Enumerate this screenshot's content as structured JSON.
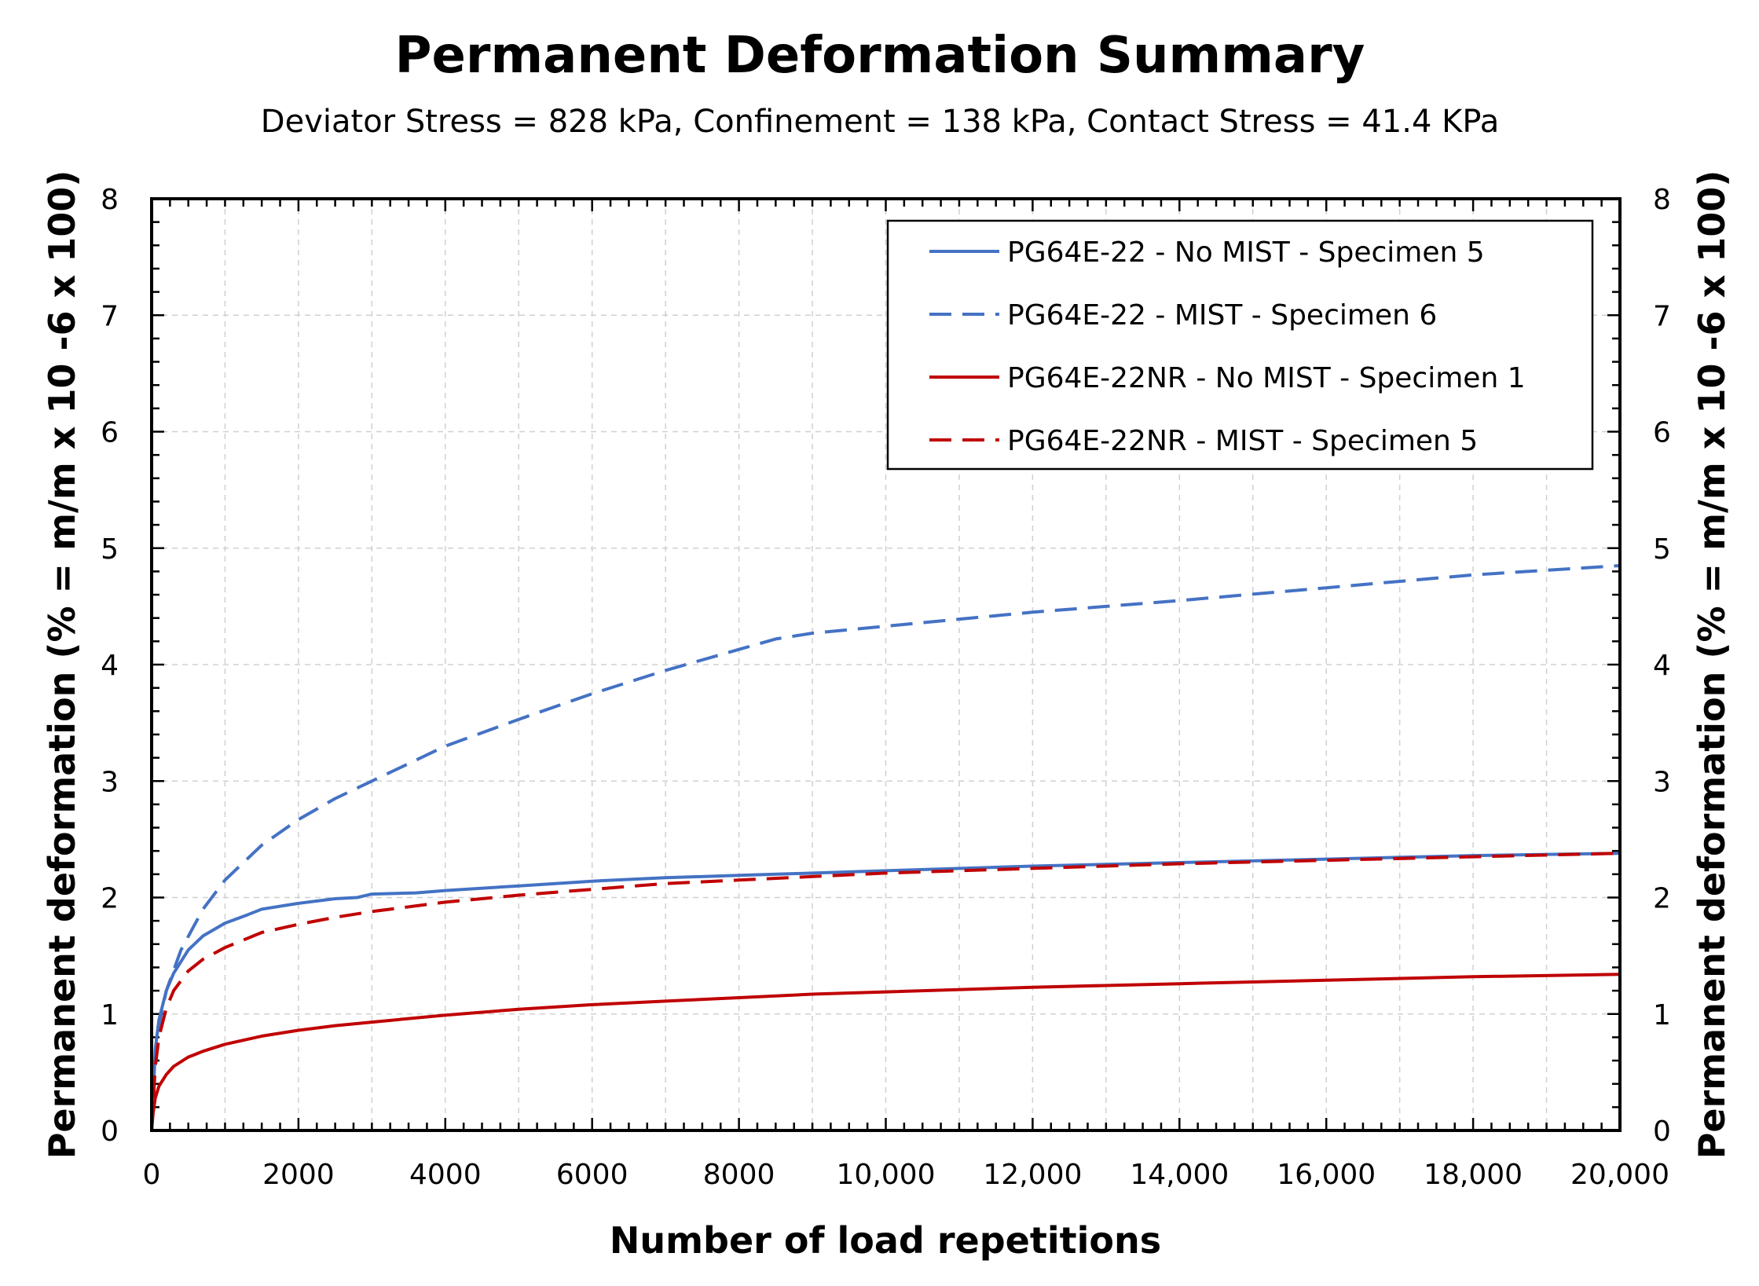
{
  "chart_data": {
    "type": "line",
    "title": "Permanent Deformation Summary",
    "subtitle": "Deviator Stress = 828 kPa, Confinement = 138 kPa, Contact Stress = 41.4 KPa",
    "xlabel": "Number of load repetitions",
    "ylabel": "Permanent deformation (% = m/m x 10 -6 x 100)",
    "ylabel_right": "Permanent deformation (% = m/m x 10 -6 x 100)",
    "xlim": [
      0,
      20000
    ],
    "ylim": [
      0,
      8
    ],
    "grid": true,
    "legend_position": "top-right",
    "x_ticks": [
      {
        "value": 0,
        "label": "0"
      },
      {
        "value": 2000,
        "label": "2000"
      },
      {
        "value": 4000,
        "label": "4000"
      },
      {
        "value": 6000,
        "label": "6000"
      },
      {
        "value": 8000,
        "label": "8000"
      },
      {
        "value": 10000,
        "label": "10,000"
      },
      {
        "value": 12000,
        "label": "12,000"
      },
      {
        "value": 14000,
        "label": "14,000"
      },
      {
        "value": 16000,
        "label": "16,000"
      },
      {
        "value": 18000,
        "label": "18,000"
      },
      {
        "value": 20000,
        "label": "20,000"
      }
    ],
    "y_ticks": [
      {
        "value": 0,
        "label": "0"
      },
      {
        "value": 1,
        "label": "1"
      },
      {
        "value": 2,
        "label": "2"
      },
      {
        "value": 3,
        "label": "3"
      },
      {
        "value": 4,
        "label": "4"
      },
      {
        "value": 5,
        "label": "5"
      },
      {
        "value": 6,
        "label": "6"
      },
      {
        "value": 7,
        "label": "7"
      },
      {
        "value": 8,
        "label": "8"
      }
    ],
    "series": [
      {
        "name": "PG64E-22 - No MIST - Specimen 5",
        "color": "#4472C4",
        "dash": "solid",
        "x": [
          0,
          50,
          100,
          200,
          300,
          500,
          700,
          1000,
          1300,
          1500,
          2000,
          2500,
          2800,
          3000,
          3600,
          4000,
          5000,
          6000,
          7000,
          8000,
          9000,
          10000,
          12000,
          14000,
          16000,
          18000,
          20000
        ],
        "y": [
          0,
          0.7,
          0.95,
          1.2,
          1.35,
          1.55,
          1.67,
          1.78,
          1.85,
          1.9,
          1.95,
          1.99,
          2.0,
          2.03,
          2.04,
          2.06,
          2.1,
          2.14,
          2.17,
          2.19,
          2.21,
          2.23,
          2.27,
          2.3,
          2.33,
          2.36,
          2.38
        ]
      },
      {
        "name": "PG64E-22 - MIST - Specimen 6",
        "color": "#4472C4",
        "dash": "dashed",
        "x": [
          0,
          50,
          100,
          200,
          400,
          700,
          1000,
          1500,
          2000,
          2500,
          3000,
          4000,
          5000,
          6000,
          7000,
          8000,
          8500,
          9000,
          10000,
          12000,
          14000,
          16000,
          18000,
          20000
        ],
        "y": [
          0,
          0.6,
          0.9,
          1.2,
          1.55,
          1.9,
          2.15,
          2.45,
          2.67,
          2.85,
          3.0,
          3.3,
          3.53,
          3.75,
          3.95,
          4.13,
          4.22,
          4.27,
          4.33,
          4.45,
          4.55,
          4.66,
          4.77,
          4.85
        ]
      },
      {
        "name": "PG64E-22NR - No MIST - Specimen 1",
        "color": "#C00000",
        "dash": "solid",
        "x": [
          0,
          20,
          50,
          100,
          200,
          300,
          500,
          700,
          1000,
          1500,
          2000,
          2500,
          3000,
          4000,
          5000,
          6000,
          7000,
          8000,
          9000,
          10000,
          12000,
          14000,
          16000,
          18000,
          20000
        ],
        "y": [
          0,
          0.15,
          0.28,
          0.38,
          0.48,
          0.55,
          0.63,
          0.68,
          0.74,
          0.81,
          0.86,
          0.9,
          0.93,
          0.99,
          1.04,
          1.08,
          1.11,
          1.14,
          1.17,
          1.19,
          1.23,
          1.26,
          1.29,
          1.32,
          1.34
        ]
      },
      {
        "name": "PG64E-22NR - MIST - Specimen 5",
        "color": "#C00000",
        "dash": "dashed",
        "x": [
          0,
          50,
          100,
          200,
          300,
          500,
          700,
          1000,
          1500,
          2000,
          2500,
          3000,
          4000,
          5000,
          6000,
          7000,
          8000,
          9000,
          10000,
          12000,
          14000,
          16000,
          18000,
          20000
        ],
        "y": [
          0,
          0.55,
          0.8,
          1.05,
          1.2,
          1.37,
          1.47,
          1.57,
          1.7,
          1.77,
          1.83,
          1.88,
          1.96,
          2.02,
          2.07,
          2.12,
          2.15,
          2.18,
          2.21,
          2.25,
          2.29,
          2.32,
          2.35,
          2.38
        ]
      }
    ]
  }
}
